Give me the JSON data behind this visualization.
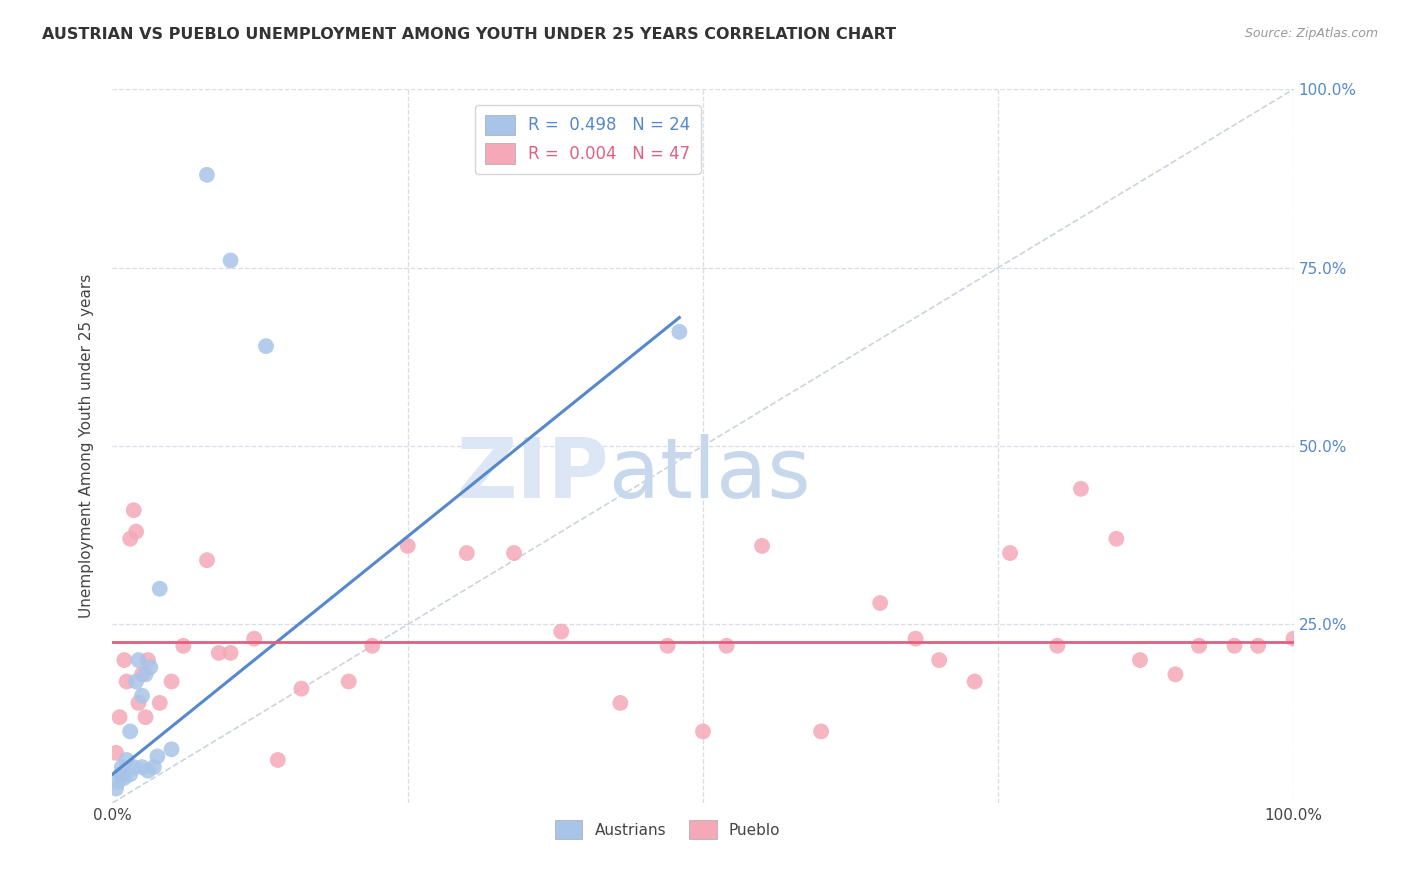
{
  "title": "AUSTRIAN VS PUEBLO UNEMPLOYMENT AMONG YOUTH UNDER 25 YEARS CORRELATION CHART",
  "source": "Source: ZipAtlas.com",
  "ylabel": "Unemployment Among Youth under 25 years",
  "xlim": [
    0,
    1
  ],
  "ylim": [
    0,
    1
  ],
  "austrians_R": 0.498,
  "austrians_N": 24,
  "pueblo_R": 0.004,
  "pueblo_N": 47,
  "austrians_color": "#a8c4e8",
  "pueblo_color": "#f4a8b8",
  "blue_line_color": "#5588cc",
  "pink_line_color": "#e06080",
  "diagonal_color": "#c0c8d8",
  "watermark_zip": "ZIP",
  "watermark_atlas": "atlas",
  "background_color": "#ffffff",
  "grid_color": "#d8dde8",
  "austrians_x": [
    0.003,
    0.005,
    0.007,
    0.008,
    0.01,
    0.012,
    0.015,
    0.015,
    0.018,
    0.02,
    0.022,
    0.025,
    0.025,
    0.028,
    0.03,
    0.032,
    0.035,
    0.038,
    0.04,
    0.05,
    0.08,
    0.1,
    0.13,
    0.48
  ],
  "austrians_y": [
    0.02,
    0.03,
    0.04,
    0.05,
    0.035,
    0.06,
    0.04,
    0.1,
    0.05,
    0.17,
    0.2,
    0.05,
    0.15,
    0.18,
    0.045,
    0.19,
    0.05,
    0.065,
    0.3,
    0.075,
    0.88,
    0.76,
    0.64,
    0.66
  ],
  "pueblo_x": [
    0.003,
    0.006,
    0.008,
    0.01,
    0.012,
    0.015,
    0.018,
    0.02,
    0.022,
    0.025,
    0.028,
    0.03,
    0.04,
    0.05,
    0.06,
    0.08,
    0.09,
    0.1,
    0.12,
    0.14,
    0.16,
    0.2,
    0.22,
    0.25,
    0.3,
    0.34,
    0.38,
    0.43,
    0.47,
    0.5,
    0.52,
    0.55,
    0.6,
    0.65,
    0.68,
    0.7,
    0.73,
    0.76,
    0.8,
    0.82,
    0.85,
    0.87,
    0.9,
    0.92,
    0.95,
    0.97,
    1.0
  ],
  "pueblo_y": [
    0.07,
    0.12,
    0.04,
    0.2,
    0.17,
    0.37,
    0.41,
    0.38,
    0.14,
    0.18,
    0.12,
    0.2,
    0.14,
    0.17,
    0.22,
    0.34,
    0.21,
    0.21,
    0.23,
    0.06,
    0.16,
    0.17,
    0.22,
    0.36,
    0.35,
    0.35,
    0.24,
    0.14,
    0.22,
    0.1,
    0.22,
    0.36,
    0.1,
    0.28,
    0.23,
    0.2,
    0.17,
    0.35,
    0.22,
    0.44,
    0.37,
    0.2,
    0.18,
    0.22,
    0.22,
    0.22,
    0.23
  ],
  "blue_line_x": [
    0.0,
    0.48
  ],
  "blue_line_y": [
    0.04,
    0.68
  ],
  "pink_line_x": [
    0.0,
    1.0
  ],
  "pink_line_y": [
    0.225,
    0.225
  ]
}
